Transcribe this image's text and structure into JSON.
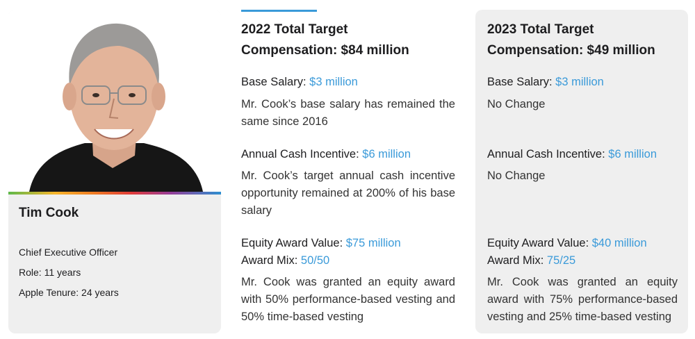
{
  "profile": {
    "name": "Tim Cook",
    "title": "Chief Executive Officer",
    "role": "Role: 11 years",
    "tenure": "Apple Tenure: 24 years"
  },
  "col2022": {
    "heading_line1": "2022 Total Target",
    "heading_line2": "Compensation: $84 million",
    "base_label": "Base Salary:",
    "base_value": "$3 million",
    "base_desc": "Mr. Cook’s base salary has remained the same since 2016",
    "aci_label": "Annual Cash Incentive:",
    "aci_value": "$6 million",
    "aci_desc": "Mr. Cook’s target annual cash incentive opportunity remained at 200% of his base salary",
    "equity_label": "Equity Award Value:",
    "equity_value": "$75 million",
    "mix_label": "Award Mix:",
    "mix_value": "50/50",
    "equity_desc": "Mr. Cook was granted an equity award with 50% performance-based vesting and 50% time-based vesting"
  },
  "col2023": {
    "heading_line1": "2023 Total Target",
    "heading_line2": "Compensation: $49 million",
    "base_label": "Base Salary:",
    "base_value": "$3 million",
    "base_desc": "No Change",
    "aci_label": "Annual Cash Incentive:",
    "aci_value": "$6 million",
    "aci_desc": "No Change",
    "equity_label": "Equity Award Value:",
    "equity_value": "$40 million",
    "mix_label": "Award Mix:",
    "mix_value": "75/25",
    "equity_desc": "Mr. Cook was granted an equity award with 75% performance-based vesting and 25% time-based vesting"
  },
  "colors": {
    "accent_blue": "#3a9ad9",
    "card_gray": "#efefef"
  }
}
